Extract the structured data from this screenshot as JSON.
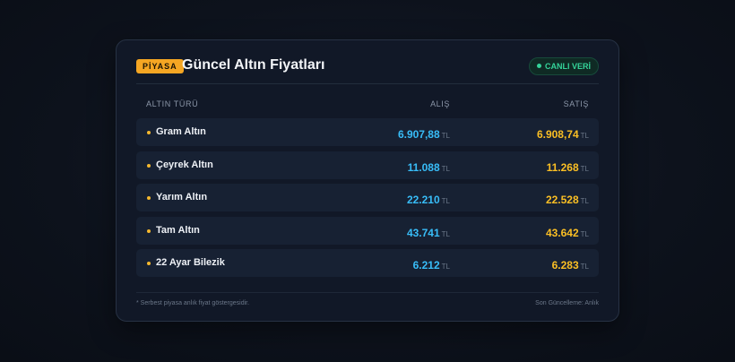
{
  "header": {
    "badge": "PİYASA",
    "title": "Güncel Altın Fiyatları",
    "live_label": "CANLI VERİ"
  },
  "columns": {
    "type": "ALTIN TÜRÜ",
    "buy": "ALIŞ",
    "sell": "SATIŞ"
  },
  "rows": [
    {
      "name": "Gram Altın",
      "buy": "6.907,88",
      "sell": "6.908,74",
      "unit": "TL"
    },
    {
      "name": "Çeyrek Altın",
      "buy": "11.088",
      "sell": "11.268",
      "unit": "TL"
    },
    {
      "name": "Yarım Altın",
      "buy": "22.210",
      "sell": "22.528",
      "unit": "TL"
    },
    {
      "name": "Tam Altın",
      "buy": "43.741",
      "sell": "43.642",
      "unit": "TL"
    },
    {
      "name": "22 Ayar Bilezik",
      "buy": "6.212",
      "sell": "6.283",
      "unit": "TL"
    }
  ],
  "footer": {
    "note": "* Serbest piyasa anlık fiyat göstergesidir.",
    "updated": "Son Güncelleme: Anlık"
  },
  "colors": {
    "accent": "#f5a623",
    "buy": "#38bdf8",
    "sell": "#fbbf24",
    "live": "#34d399"
  }
}
